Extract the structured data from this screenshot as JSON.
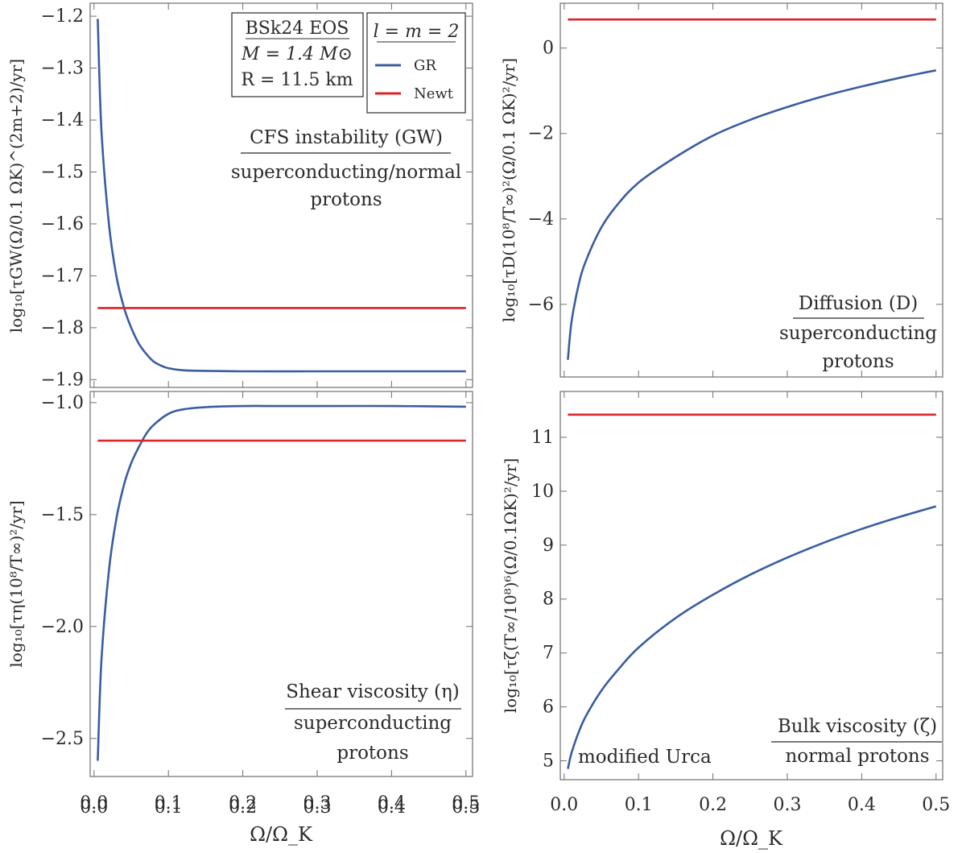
{
  "colors": {
    "gr": "#3a5da0",
    "newt": "#d9242b",
    "frame": "#6e6e6e",
    "text": "#2b2b2b"
  },
  "xlabel": "Ω/Ω_K",
  "params_box": {
    "line1": "BSk24 EOS",
    "line2": "M = 1.4 M⊙",
    "line3": "R = 11.5 km"
  },
  "legend": {
    "title": "l = m = 2",
    "gr": "GR",
    "newt": "Newt"
  },
  "chart_data": [
    {
      "id": "gw",
      "type": "line",
      "ylabel": "log₁₀[τGW(Ω/0.1 ΩK)^(2m+2)/yr]",
      "annotation": {
        "title": "CFS instability (GW)",
        "sub1": "superconducting/normal",
        "sub2": "protons"
      },
      "xlim": [
        -0.0052,
        0.5089
      ],
      "ylim": [
        -1.915,
        -1.175
      ],
      "xticks": [
        "0.0",
        "0.1",
        "0.2",
        "0.3",
        "0.4",
        "0.5"
      ],
      "xtick_values": [
        0,
        0.1,
        0.2,
        0.3,
        0.4,
        0.5
      ],
      "yticks": [
        "-1.2",
        "-1.3",
        "-1.4",
        "-1.5",
        "-1.6",
        "-1.7",
        "-1.8",
        "-1.9"
      ],
      "ytick_values": [
        -1.2,
        -1.3,
        -1.4,
        -1.5,
        -1.6,
        -1.7,
        -1.8,
        -1.9
      ],
      "series": [
        {
          "name": "GR",
          "x": [
            0.005,
            0.01,
            0.02,
            0.03,
            0.04,
            0.05,
            0.06,
            0.07,
            0.08,
            0.09,
            0.1,
            0.12,
            0.15,
            0.2,
            0.3,
            0.4,
            0.5
          ],
          "y": [
            -1.205,
            -1.42,
            -1.6,
            -1.7,
            -1.76,
            -1.8,
            -1.83,
            -1.85,
            -1.865,
            -1.873,
            -1.878,
            -1.882,
            -1.883,
            -1.884,
            -1.884,
            -1.884,
            -1.884
          ]
        },
        {
          "name": "Newt",
          "x": [
            0.005,
            0.5
          ],
          "y": [
            -1.762,
            -1.762
          ]
        }
      ]
    },
    {
      "id": "diffusion",
      "type": "line",
      "ylabel": "log₁₀[τD(10⁸/T∞)²(Ω/0.1 ΩK)²/yr]",
      "annotation": {
        "title": "Diffusion (D)",
        "sub1": "superconducting",
        "sub2": "protons"
      },
      "xlim": [
        -0.0052,
        0.5089
      ],
      "ylim": [
        -7.7,
        1.05
      ],
      "xticks": [
        "0.0",
        "0.1",
        "0.2",
        "0.3",
        "0.4",
        "0.5"
      ],
      "xtick_values": [
        0,
        0.1,
        0.2,
        0.3,
        0.4,
        0.5
      ],
      "yticks": [
        "0",
        "-2",
        "-4",
        "-6"
      ],
      "ytick_values": [
        0,
        -2,
        -4,
        -6
      ],
      "series": [
        {
          "name": "GR",
          "x": [
            0.005,
            0.01,
            0.02,
            0.03,
            0.05,
            0.07,
            0.1,
            0.15,
            0.2,
            0.25,
            0.3,
            0.35,
            0.4,
            0.45,
            0.5
          ],
          "y": [
            -7.3,
            -6.4,
            -5.5,
            -4.95,
            -4.2,
            -3.7,
            -3.15,
            -2.55,
            -2.05,
            -1.68,
            -1.38,
            -1.12,
            -0.9,
            -0.7,
            -0.52
          ]
        },
        {
          "name": "Newt",
          "x": [
            0.005,
            0.5
          ],
          "y": [
            0.67,
            0.67
          ]
        }
      ]
    },
    {
      "id": "shear",
      "type": "line",
      "ylabel": "log₁₀[τη(10⁸/T∞)²/yr]",
      "annotation": {
        "title": "Shear viscosity (η)",
        "sub1": "superconducting",
        "sub2": "protons"
      },
      "xlim": [
        -0.0052,
        0.5089
      ],
      "ylim": [
        -2.67,
        -0.95
      ],
      "xticks": [
        "0.0",
        "0.1",
        "0.2",
        "0.3",
        "0.4",
        "0.5"
      ],
      "xtick_values": [
        0,
        0.1,
        0.2,
        0.3,
        0.4,
        0.5
      ],
      "yticks": [
        "-1.0",
        "-1.5",
        "-2.0",
        "-2.5"
      ],
      "ytick_values": [
        -1.0,
        -1.5,
        -2.0,
        -2.5
      ],
      "series": [
        {
          "name": "GR",
          "x": [
            0.005,
            0.01,
            0.02,
            0.03,
            0.04,
            0.05,
            0.06,
            0.07,
            0.08,
            0.1,
            0.12,
            0.15,
            0.2,
            0.25,
            0.3,
            0.4,
            0.5
          ],
          "y": [
            -2.6,
            -2.15,
            -1.75,
            -1.52,
            -1.37,
            -1.27,
            -1.2,
            -1.14,
            -1.1,
            -1.05,
            -1.03,
            -1.02,
            -1.015,
            -1.015,
            -1.015,
            -1.015,
            -1.018
          ]
        },
        {
          "name": "Newt",
          "x": [
            0.005,
            0.5
          ],
          "y": [
            -1.17,
            -1.17
          ]
        }
      ]
    },
    {
      "id": "bulk",
      "type": "line",
      "ylabel": "log₁₀[τζ(T∞/10⁸)⁶(Ω/0.1ΩK)²/yr]",
      "annotation": {
        "title": "Bulk viscosity (ζ)",
        "sub1": "normal protons",
        "note": "modified Urca"
      },
      "xlim": [
        -0.0052,
        0.5089
      ],
      "ylim": [
        4.65,
        11.85
      ],
      "xticks": [
        "0.0",
        "0.1",
        "0.2",
        "0.3",
        "0.4",
        "0.5"
      ],
      "xtick_values": [
        0,
        0.1,
        0.2,
        0.3,
        0.4,
        0.5
      ],
      "yticks": [
        "5",
        "6",
        "7",
        "8",
        "9",
        "10",
        "11"
      ],
      "ytick_values": [
        5,
        6,
        7,
        8,
        9,
        10,
        11
      ],
      "series": [
        {
          "name": "GR",
          "x": [
            0.005,
            0.01,
            0.02,
            0.03,
            0.05,
            0.07,
            0.1,
            0.15,
            0.2,
            0.25,
            0.3,
            0.35,
            0.4,
            0.45,
            0.5
          ],
          "y": [
            4.85,
            5.15,
            5.55,
            5.85,
            6.3,
            6.65,
            7.1,
            7.65,
            8.08,
            8.45,
            8.77,
            9.05,
            9.3,
            9.52,
            9.72
          ]
        },
        {
          "name": "Newt",
          "x": [
            0.005,
            0.5
          ],
          "y": [
            11.42,
            11.42
          ]
        }
      ]
    }
  ]
}
